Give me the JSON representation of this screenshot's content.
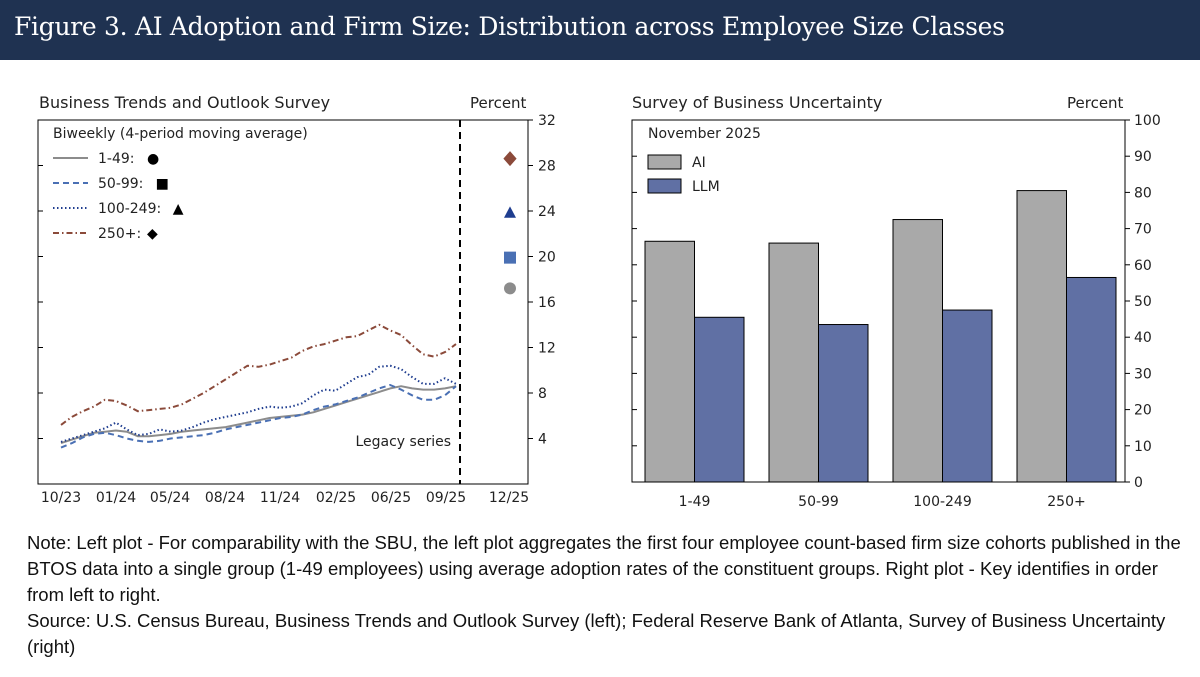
{
  "header": {
    "title": "Figure 3. AI Adoption and Firm Size: Distribution across Employee Size Classes",
    "background": "#1f3251"
  },
  "chart_data": [
    {
      "type": "line",
      "title": "Business Trends and Outlook Survey",
      "subtitle": "Biweekly (4-period moving average)",
      "ylabel": "Percent",
      "ylim": [
        0,
        32
      ],
      "yticks": [
        4,
        8,
        12,
        16,
        20,
        24,
        28,
        32
      ],
      "xticks": [
        "10/23",
        "01/24",
        "05/24",
        "08/24",
        "11/24",
        "02/25",
        "06/25",
        "09/25",
        "12/25"
      ],
      "annotation": "Legacy series",
      "series": [
        {
          "name": "1-49:",
          "legend_marker": "●",
          "marker_name": "circle",
          "color": "#8c8c8c",
          "dash": "solid",
          "values": [
            3.6,
            3.9,
            4.2,
            4.5,
            4.6,
            4.7,
            4.6,
            4.2,
            4.2,
            4.3,
            4.4,
            4.6,
            4.7,
            4.8,
            4.9,
            5.0,
            5.2,
            5.4,
            5.6,
            5.8,
            5.9,
            6.0,
            6.1,
            6.3,
            6.6,
            6.9,
            7.2,
            7.5,
            7.8,
            8.1,
            8.4,
            8.6,
            8.4,
            8.3,
            8.3,
            8.4,
            8.6
          ],
          "latest": 17.2
        },
        {
          "name": "50-99:",
          "legend_marker": "■",
          "marker_name": "square",
          "color": "#4a70b4",
          "dash": "dashed",
          "values": [
            3.2,
            3.6,
            4.1,
            4.4,
            4.5,
            4.3,
            4.0,
            3.8,
            3.7,
            3.8,
            4.0,
            4.1,
            4.2,
            4.3,
            4.5,
            4.8,
            5.0,
            5.2,
            5.4,
            5.6,
            5.8,
            5.9,
            6.1,
            6.5,
            6.8,
            7.0,
            7.3,
            7.6,
            8.0,
            8.4,
            8.7,
            8.3,
            7.8,
            7.4,
            7.4,
            7.8,
            8.6
          ],
          "latest": 19.9
        },
        {
          "name": "100-249:",
          "legend_marker": "▲",
          "marker_name": "triangle",
          "color": "#1f3d8f",
          "dash": "dotted",
          "values": [
            3.7,
            4.0,
            4.3,
            4.6,
            4.9,
            5.4,
            4.8,
            4.3,
            4.4,
            4.8,
            4.6,
            4.7,
            5.0,
            5.4,
            5.7,
            5.9,
            6.1,
            6.3,
            6.6,
            6.8,
            6.7,
            6.8,
            7.1,
            7.8,
            8.3,
            8.2,
            8.8,
            9.4,
            9.6,
            10.3,
            10.4,
            10.1,
            9.4,
            8.8,
            8.8,
            9.3,
            8.8
          ],
          "latest": 23.8
        },
        {
          "name": "250+:",
          "legend_marker": "◆",
          "marker_name": "diamond",
          "color": "#8b4a3a",
          "dash": "dashdot",
          "values": [
            5.2,
            5.9,
            6.4,
            6.8,
            7.4,
            7.3,
            6.9,
            6.4,
            6.5,
            6.6,
            6.7,
            7.0,
            7.5,
            8.0,
            8.6,
            9.2,
            9.8,
            10.4,
            10.3,
            10.5,
            10.8,
            11.1,
            11.7,
            12.1,
            12.3,
            12.6,
            12.9,
            13.0,
            13.5,
            14.0,
            13.5,
            13.1,
            12.2,
            11.4,
            11.2,
            11.6,
            12.3
          ],
          "latest": 28.6
        }
      ]
    },
    {
      "type": "bar",
      "title": "Survey of Business Uncertainty",
      "subtitle": "November 2025",
      "ylabel": "Percent",
      "ylim": [
        0,
        100
      ],
      "yticks": [
        0,
        10,
        20,
        30,
        40,
        50,
        60,
        70,
        80,
        90,
        100
      ],
      "categories": [
        "1-49",
        "50-99",
        "100-249",
        "250+"
      ],
      "series": [
        {
          "name": "AI",
          "color": "#a9a9a9",
          "values": [
            66.5,
            66.0,
            72.5,
            80.5
          ]
        },
        {
          "name": "LLM",
          "color": "#6070a4",
          "values": [
            45.5,
            43.5,
            47.5,
            56.5
          ]
        }
      ]
    }
  ],
  "notes": {
    "note": "Note: Left plot - For comparability with the SBU, the left plot aggregates the first four employee count-based firm size cohorts published in the BTOS data into a single group (1-49 employees) using average adoption rates of the constituent groups. Right plot - Key identifies in order from left to right.",
    "source": "Source: U.S. Census Bureau, Business Trends and Outlook Survey (left); Federal Reserve Bank of Atlanta, Survey of Business Uncertainty (right)"
  }
}
